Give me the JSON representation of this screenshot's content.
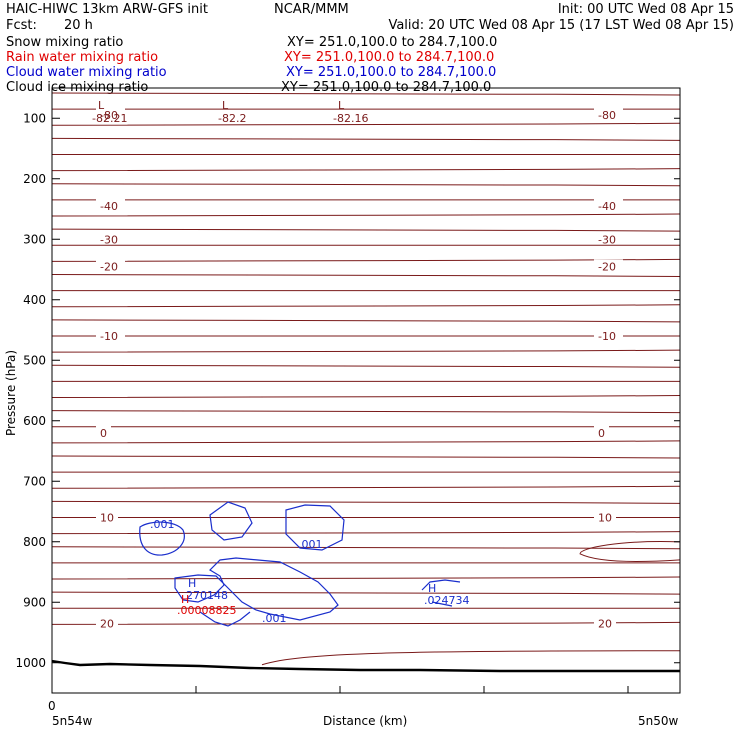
{
  "header": {
    "model_title": "HAIC-HIWC 13km ARW-GFS init",
    "org": "NCAR/MMM",
    "init": "Init: 00 UTC Wed 08 Apr 15",
    "fcst_label": "Fcst:",
    "fcst_value": "20 h",
    "valid": "Valid: 20 UTC Wed 08 Apr 15 (17 LST Wed 08 Apr 15)",
    "fields": [
      {
        "name": "Snow mixing ratio",
        "xy": "XY= 251.0,100.0 to 284.7,100.0",
        "color": "#000000"
      },
      {
        "name": "Rain water mixing ratio",
        "xy": "XY= 251.0,100.0 to 284.7,100.0",
        "color": "#e00000"
      },
      {
        "name": "Cloud water mixing ratio",
        "xy": "XY= 251.0,100.0 to 284.7,100.0",
        "color": "#0000cc"
      },
      {
        "name": "Cloud ice mixing ratio",
        "xy": "XY= 251.0,100.0 to 284.7,100.0",
        "color": "#000000"
      }
    ]
  },
  "colors": {
    "temperature": "#7a1a1a",
    "cloud_water": "#1a2ecc",
    "rain": "#e00000",
    "terrain": "#000000",
    "frame": "#000000"
  },
  "chart_data": {
    "type": "contour",
    "ylabel": "Pressure (hPa)",
    "xlabel": "Distance (km)",
    "x_start_label": "0",
    "x_left_label": "5n54w",
    "x_right_label": "5n50w",
    "ylim": [
      50,
      1050
    ],
    "y_ticks": [
      100,
      200,
      300,
      400,
      500,
      600,
      700,
      800,
      900,
      1000
    ],
    "isotherm_levels": [
      {
        "pressure": 620,
        "label": "0"
      },
      {
        "pressure": 460,
        "label": "-10"
      },
      {
        "pressure": 345,
        "label": "-20"
      },
      {
        "pressure": 300,
        "label": "-30"
      },
      {
        "pressure": 245,
        "label": "-40"
      },
      {
        "pressure": 95,
        "label": "-80"
      },
      {
        "pressure": 760,
        "label": "10"
      },
      {
        "pressure": 935,
        "label": "20"
      }
    ],
    "extrema_labels": [
      {
        "kind": "L",
        "value": "-82.21",
        "color": "temperature"
      },
      {
        "kind": "L",
        "value": "-82.2",
        "color": "temperature"
      },
      {
        "kind": "L",
        "value": "-82.16",
        "color": "temperature"
      },
      {
        "kind": "H",
        "value": "270148",
        "color": "cloud_water"
      },
      {
        "kind": "H",
        "value": ".00008825",
        "color": "rain"
      },
      {
        "kind": "H",
        "value": ".024734",
        "color": "cloud_water"
      }
    ],
    "cloud_labels": [
      ".001",
      ".001",
      ".001"
    ],
    "grid": false
  }
}
